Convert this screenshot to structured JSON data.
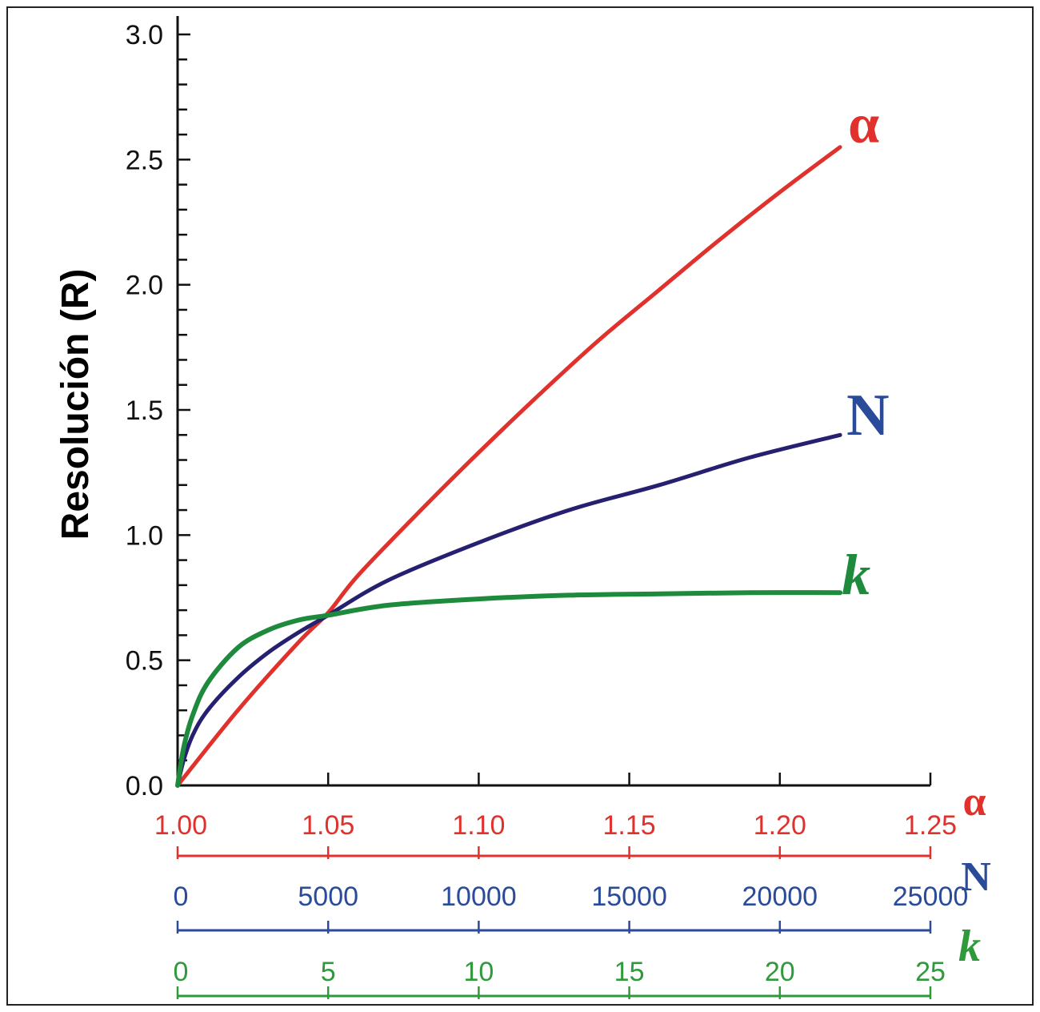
{
  "chart_data": {
    "type": "line",
    "title": "",
    "ylabel": "Resolución (R)",
    "ylim": [
      0,
      3.0
    ],
    "yticks": [
      "0.0",
      "0.5",
      "1.0",
      "1.5",
      "2.0",
      "2.5",
      "3.0"
    ],
    "grid": false,
    "x_axes": [
      {
        "id": "alpha",
        "label": "α",
        "color": "#e0312c",
        "range": [
          1.0,
          1.25
        ],
        "ticks": [
          "1.00",
          "1.05",
          "1.10",
          "1.15",
          "1.20",
          "1.25"
        ]
      },
      {
        "id": "N",
        "label": "N",
        "color": "#2a4a9a",
        "range": [
          0,
          25000
        ],
        "ticks": [
          "0",
          "5000",
          "10000",
          "15000",
          "20000",
          "25000"
        ]
      },
      {
        "id": "k",
        "label": "k",
        "color": "#2f9a3c",
        "range": [
          0,
          25
        ],
        "ticks": [
          "0",
          "5",
          "10",
          "15",
          "20",
          "25"
        ]
      }
    ],
    "series": [
      {
        "name": "α",
        "axis": "alpha",
        "color": "#e0312c",
        "x": [
          1.0,
          1.02,
          1.04,
          1.05,
          1.06,
          1.08,
          1.1,
          1.12,
          1.14,
          1.16,
          1.18,
          1.2,
          1.22
        ],
        "y": [
          0.0,
          0.3,
          0.57,
          0.69,
          0.84,
          1.09,
          1.33,
          1.56,
          1.78,
          1.98,
          2.18,
          2.37,
          2.55
        ]
      },
      {
        "name": "N",
        "axis": "N",
        "color": "#252070",
        "x": [
          0,
          200,
          500,
          1000,
          2000,
          3000,
          4000,
          5000,
          7000,
          10000,
          13000,
          16000,
          19000,
          22000
        ],
        "y": [
          0.0,
          0.1,
          0.2,
          0.3,
          0.43,
          0.53,
          0.61,
          0.68,
          0.82,
          0.97,
          1.1,
          1.2,
          1.31,
          1.4
        ]
      },
      {
        "name": "k",
        "axis": "k",
        "color": "#1e8a3c",
        "x": [
          0,
          0.2,
          0.5,
          1,
          2,
          3,
          4,
          5,
          7,
          10,
          13,
          16,
          19,
          22
        ],
        "y": [
          0.0,
          0.15,
          0.28,
          0.41,
          0.55,
          0.62,
          0.66,
          0.68,
          0.72,
          0.745,
          0.76,
          0.765,
          0.77,
          0.77
        ]
      }
    ]
  }
}
